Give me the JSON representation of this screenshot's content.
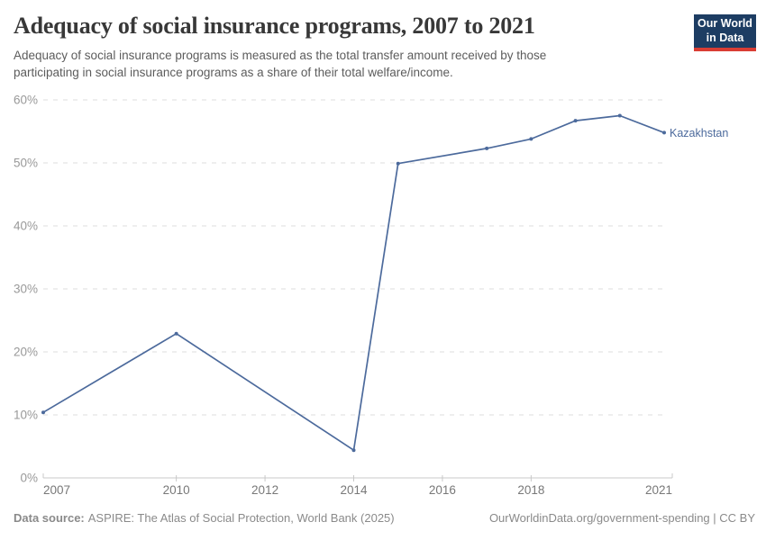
{
  "header": {
    "title": "Adequacy of social insurance programs, 2007 to 2021",
    "subtitle_line1": "Adequacy of social insurance programs is measured as the total transfer amount received by those",
    "subtitle_line2": "participating in social insurance programs as a share of their total welfare/income.",
    "logo": {
      "line1": "Our World",
      "line2": "in Data"
    }
  },
  "chart_data": {
    "type": "line",
    "title": "Adequacy of social insurance programs, 2007 to 2021",
    "x": [
      2007,
      2010,
      2014,
      2015,
      2017,
      2018,
      2019,
      2020,
      2021
    ],
    "series": [
      {
        "name": "Kazakhstan",
        "color": "#4c6a9c",
        "values": [
          10.4,
          22.9,
          4.4,
          49.9,
          52.3,
          53.8,
          56.7,
          57.5,
          54.8
        ]
      }
    ],
    "xlim": [
      2007,
      2021
    ],
    "ylim": [
      0,
      60
    ],
    "x_ticks": [
      2007,
      2010,
      2012,
      2014,
      2016,
      2018,
      2021
    ],
    "y_ticks": [
      0,
      10,
      20,
      30,
      40,
      50,
      60
    ],
    "y_suffix": "%",
    "grid": "horizontal-dashed",
    "legend_position": "end-of-line-label",
    "style": {
      "grid_color": "#dedede",
      "axis_color": "#c8c8c8",
      "y_label_color": "#999999",
      "x_label_color": "#787878",
      "tick_font_size": 13.5,
      "entity_font_size": 12.5
    }
  },
  "footer": {
    "source_label": "Data source:",
    "source_text": "ASPIRE: The Atlas of Social Protection, World Bank (2025)",
    "credit": "OurWorldinData.org/government-spending | CC BY"
  },
  "colors": {
    "brand_navy": "#1d3d63",
    "brand_red": "#d93d34",
    "series_blue": "#4c6a9c"
  }
}
